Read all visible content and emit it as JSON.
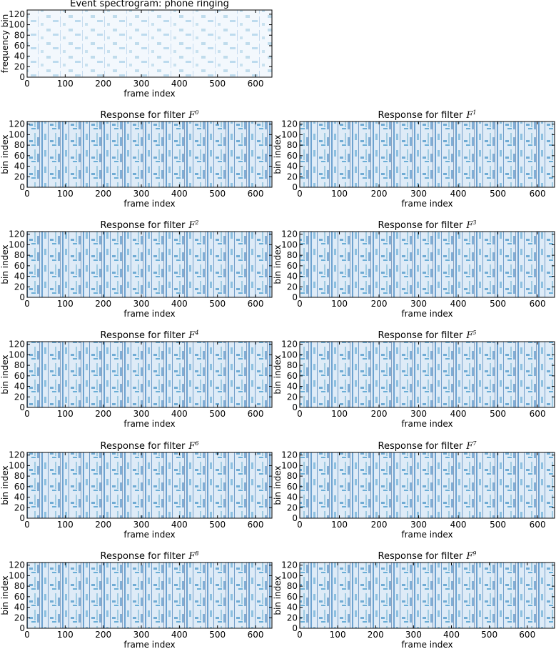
{
  "chart_data": [
    {
      "type": "heatmap",
      "title": "Event spectrogram: phone ringing",
      "xlabel": "frame index",
      "ylabel": "frequency bin",
      "colormap": "Blues",
      "xlim": [
        0,
        643
      ],
      "ylim": [
        0,
        128
      ],
      "xticks": [
        0,
        100,
        200,
        300,
        400,
        500,
        600
      ],
      "yticks": [
        0,
        20,
        40,
        60,
        80,
        100,
        120
      ]
    },
    {
      "type": "heatmap",
      "title": "Response for filter",
      "title_symbol": "F",
      "title_superscript": "0",
      "xlabel": "frame index",
      "ylabel": "bin index",
      "colormap": "Blues",
      "xlim": [
        0,
        643
      ],
      "ylim": [
        0,
        125
      ],
      "xticks": [
        0,
        100,
        200,
        300,
        400,
        500,
        600
      ],
      "yticks": [
        0,
        20,
        40,
        60,
        80,
        100,
        120
      ]
    },
    {
      "type": "heatmap",
      "title": "Response for filter",
      "title_symbol": "F",
      "title_superscript": "1",
      "xlabel": "frame index",
      "ylabel": "bin index",
      "colormap": "Blues",
      "xlim": [
        0,
        643
      ],
      "ylim": [
        0,
        125
      ],
      "xticks": [
        0,
        100,
        200,
        300,
        400,
        500,
        600
      ],
      "yticks": [
        0,
        20,
        40,
        60,
        80,
        100,
        120
      ]
    },
    {
      "type": "heatmap",
      "title": "Response for filter",
      "title_symbol": "F",
      "title_superscript": "2",
      "xlabel": "frame index",
      "ylabel": "bin index",
      "colormap": "Blues",
      "xlim": [
        0,
        643
      ],
      "ylim": [
        0,
        125
      ],
      "xticks": [
        0,
        100,
        200,
        300,
        400,
        500,
        600
      ],
      "yticks": [
        0,
        20,
        40,
        60,
        80,
        100,
        120
      ]
    },
    {
      "type": "heatmap",
      "title": "Response for filter",
      "title_symbol": "F",
      "title_superscript": "3",
      "xlabel": "frame index",
      "ylabel": "bin index",
      "colormap": "Blues",
      "xlim": [
        0,
        643
      ],
      "ylim": [
        0,
        125
      ],
      "xticks": [
        0,
        100,
        200,
        300,
        400,
        500,
        600
      ],
      "yticks": [
        0,
        20,
        40,
        60,
        80,
        100,
        120
      ]
    },
    {
      "type": "heatmap",
      "title": "Response for filter",
      "title_symbol": "F",
      "title_superscript": "4",
      "xlabel": "frame index",
      "ylabel": "bin index",
      "colormap": "Blues",
      "xlim": [
        0,
        643
      ],
      "ylim": [
        0,
        125
      ],
      "xticks": [
        0,
        100,
        200,
        300,
        400,
        500,
        600
      ],
      "yticks": [
        0,
        20,
        40,
        60,
        80,
        100,
        120
      ]
    },
    {
      "type": "heatmap",
      "title": "Response for filter",
      "title_symbol": "F",
      "title_superscript": "5",
      "xlabel": "frame index",
      "ylabel": "bin index",
      "colormap": "Blues",
      "xlim": [
        0,
        643
      ],
      "ylim": [
        0,
        125
      ],
      "xticks": [
        0,
        100,
        200,
        300,
        400,
        500,
        600
      ],
      "yticks": [
        0,
        20,
        40,
        60,
        80,
        100,
        120
      ]
    },
    {
      "type": "heatmap",
      "title": "Response for filter",
      "title_symbol": "F",
      "title_superscript": "6",
      "xlabel": "frame index",
      "ylabel": "bin index",
      "colormap": "Blues",
      "xlim": [
        0,
        643
      ],
      "ylim": [
        0,
        125
      ],
      "xticks": [
        0,
        100,
        200,
        300,
        400,
        500,
        600
      ],
      "yticks": [
        0,
        20,
        40,
        60,
        80,
        100,
        120
      ]
    },
    {
      "type": "heatmap",
      "title": "Response for filter",
      "title_symbol": "F",
      "title_superscript": "7",
      "xlabel": "frame index",
      "ylabel": "bin index",
      "colormap": "Blues",
      "xlim": [
        0,
        643
      ],
      "ylim": [
        0,
        125
      ],
      "xticks": [
        0,
        100,
        200,
        300,
        400,
        500,
        600
      ],
      "yticks": [
        0,
        20,
        40,
        60,
        80,
        100,
        120
      ]
    },
    {
      "type": "heatmap",
      "title": "Response for filter",
      "title_symbol": "F",
      "title_superscript": "8",
      "xlabel": "frame index",
      "ylabel": "bin index",
      "colormap": "Blues",
      "xlim": [
        0,
        643
      ],
      "ylim": [
        0,
        125
      ],
      "xticks": [
        0,
        100,
        200,
        300,
        400,
        500,
        600
      ],
      "yticks": [
        0,
        20,
        40,
        60,
        80,
        100,
        120
      ]
    },
    {
      "type": "heatmap",
      "title": "Response for filter",
      "title_symbol": "F",
      "title_superscript": "9",
      "xlabel": "frame index",
      "ylabel": "bin index",
      "colormap": "Blues",
      "xlim": [
        0,
        672
      ],
      "ylim": [
        0,
        125
      ],
      "xticks": [
        0,
        100,
        200,
        300,
        400,
        500,
        600
      ],
      "yticks": [
        0,
        20,
        40,
        60,
        80,
        100,
        120
      ]
    }
  ]
}
